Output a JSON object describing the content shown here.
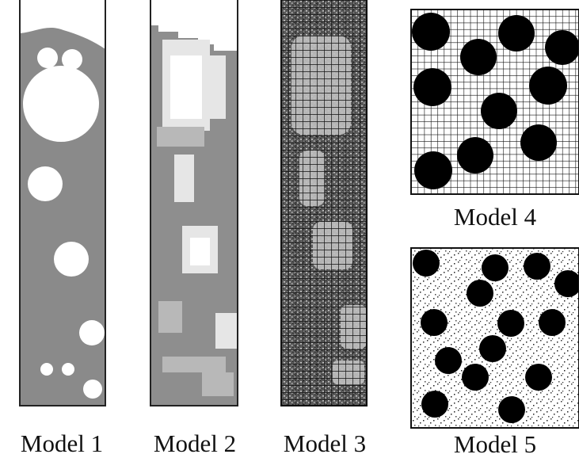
{
  "labels": [
    "Model 1",
    "Model 2",
    "Model 3",
    "Model 4",
    "Model 5"
  ]
}
